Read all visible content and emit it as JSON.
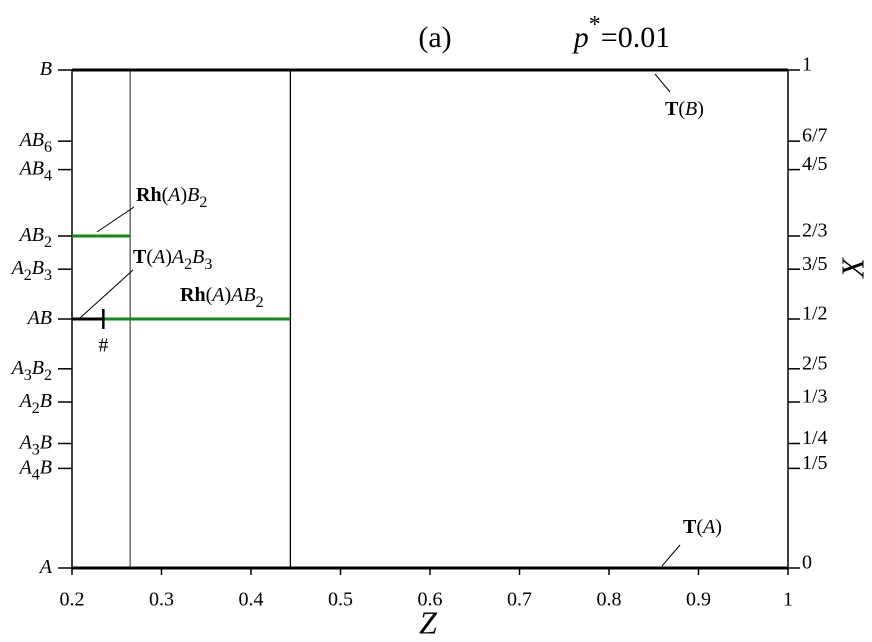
{
  "chart_data": {
    "type": "phase_diagram",
    "title": "(a)",
    "subtitle": "p*=0.01",
    "xlabel": "Z",
    "ylabel": "X",
    "xlim": [
      0.2,
      1
    ],
    "ylim": [
      0,
      1
    ],
    "xticks": [
      0.2,
      0.3,
      0.4,
      0.5,
      0.6,
      0.7,
      0.8,
      0.9,
      1
    ],
    "yticks": [
      1,
      {
        "value": 0.8571428571,
        "label": "6/7"
      },
      {
        "value": 0.8,
        "label": "4/5"
      },
      {
        "value": 0.6666666667,
        "label": "2/3"
      },
      {
        "value": 0.6,
        "label": "3/5"
      },
      {
        "value": 0.5,
        "label": "1/2"
      },
      {
        "value": 0.4,
        "label": "2/5"
      },
      {
        "value": 0.3333333333,
        "label": "1/3"
      },
      {
        "value": 0.25,
        "label": "1/4"
      },
      {
        "value": 0.2,
        "label": "1/5"
      },
      0
    ],
    "y_left_ticklabels": [
      "B",
      "AB6",
      "AB4",
      "AB2",
      "A2B3",
      "AB",
      "A3B2",
      "A2B",
      "A3B",
      "A4B",
      "A"
    ],
    "boundaries": [
      {
        "color": "#555555",
        "x": [
          0.265,
          0.265
        ],
        "y": [
          0,
          1
        ]
      },
      {
        "color": "#000000",
        "x": [
          0.444,
          0.444
        ],
        "y": [
          0,
          1
        ]
      }
    ],
    "lines": [
      {
        "name": "T(B)",
        "color": "#000000",
        "x": [
          0.2,
          1
        ],
        "y": [
          1,
          1
        ]
      },
      {
        "name": "T(A)",
        "color": "#000000",
        "x": [
          0.2,
          1
        ],
        "y": [
          0,
          0
        ]
      },
      {
        "name": "Rh(A)B2",
        "color": "#138a13",
        "x": [
          0.2,
          0.265
        ],
        "y": [
          0.6666666667,
          0.6666666667
        ]
      },
      {
        "name": "Rh(A)AB2",
        "color": "#138a13",
        "x": [
          0.2,
          0.444
        ],
        "y": [
          0.5,
          0.5
        ]
      },
      {
        "name": "T(A)A2B3",
        "color": "#000000",
        "x": [
          0.2,
          0.235
        ],
        "y": [
          0.5,
          0.5
        ]
      }
    ],
    "annotations": [
      {
        "text": "#",
        "x": 0.235,
        "y": 0.5
      }
    ]
  }
}
